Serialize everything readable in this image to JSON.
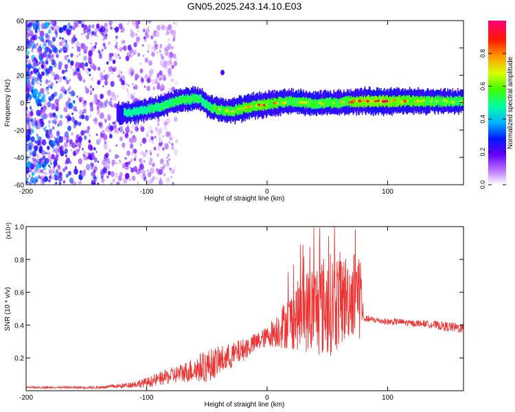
{
  "title": "GN05.2025.243.14.10.E03",
  "colors": {
    "snr_line": "#ee3333",
    "axis": "#000000",
    "background": "#ffffff"
  },
  "chart_data": [
    {
      "type": "heatmap",
      "name": "spectrogram",
      "xlabel": "Height of straight line (km)",
      "ylabel": "Frequency (Hz)",
      "xlim": [
        -200,
        163
      ],
      "ylim": [
        -60,
        60
      ],
      "xticks": [
        -200,
        -100,
        0,
        100
      ],
      "yticks": [
        -60,
        -40,
        -20,
        0,
        20,
        40,
        60
      ],
      "colorbar": {
        "label": "Normalized spectral amplitude",
        "range": [
          0.0,
          1.0
        ],
        "ticks": [
          0.0,
          0.2,
          0.4,
          0.6,
          0.8
        ],
        "colormap": [
          "#ffffff",
          "#7b00ff",
          "#0000ff",
          "#00c8ff",
          "#00ff80",
          "#80ff00",
          "#ffff00",
          "#ff8000",
          "#ff0000",
          "#ff00a0"
        ]
      },
      "noise_region_km": [
        -200,
        -85
      ],
      "signal_band": {
        "height_km": [
          -125,
          -110,
          -100,
          -90,
          -80,
          -70,
          -60,
          -55,
          -50,
          -45,
          -40,
          -35,
          -30,
          -25,
          -20,
          -15,
          -10,
          -5,
          0,
          10,
          20,
          30,
          40,
          50,
          60,
          70,
          80,
          90,
          100,
          110,
          120,
          130,
          140,
          150,
          163
        ],
        "center_freq_hz": [
          -8,
          -7,
          -5,
          -3,
          0,
          2,
          3,
          2,
          -2,
          -4,
          -5,
          -6,
          -6,
          -5,
          -4,
          -3,
          -2,
          -2,
          -1,
          0,
          1,
          0,
          -1,
          0,
          0,
          1,
          1,
          1,
          1,
          1,
          1,
          1,
          1,
          1,
          1
        ],
        "amplitude": [
          0.3,
          0.35,
          0.45,
          0.55,
          0.55,
          0.6,
          0.6,
          0.5,
          0.5,
          0.6,
          0.7,
          0.7,
          0.75,
          0.8,
          0.8,
          0.85,
          0.85,
          0.9,
          0.9,
          0.75,
          0.7,
          0.75,
          0.7,
          0.7,
          0.7,
          0.85,
          1.0,
          1.0,
          1.0,
          0.9,
          0.85,
          0.8,
          0.75,
          0.7,
          0.65
        ]
      },
      "blob": {
        "height_km": -37,
        "freq_hz": 22
      }
    },
    {
      "type": "line",
      "name": "snr",
      "xlabel": "Height of straight line (km)",
      "ylabel": "SNR (10 * v/v)",
      "multiplier": "(x10⁴)",
      "xlim": [
        -200,
        163
      ],
      "ylim": [
        0,
        1.0
      ],
      "xticks": [
        -200,
        -100,
        0,
        100
      ],
      "yticks": [
        0.2,
        0.4,
        0.6,
        0.8,
        1.0
      ],
      "ytick_labels": [
        "0.2",
        "0.4",
        "0.6",
        "0.8",
        "1.0"
      ],
      "series": [
        {
          "name": "SNR",
          "x": [
            -200,
            -180,
            -160,
            -140,
            -120,
            -110,
            -100,
            -90,
            -80,
            -70,
            -60,
            -50,
            -40,
            -30,
            -20,
            -10,
            0,
            10,
            20,
            30,
            40,
            50,
            60,
            70,
            75,
            78,
            80,
            90,
            100,
            110,
            120,
            130,
            140,
            150,
            163
          ],
          "y": [
            0.02,
            0.02,
            0.02,
            0.02,
            0.03,
            0.04,
            0.05,
            0.07,
            0.09,
            0.11,
            0.13,
            0.15,
            0.18,
            0.21,
            0.25,
            0.29,
            0.33,
            0.38,
            0.43,
            0.48,
            0.5,
            0.52,
            0.55,
            0.58,
            0.6,
            0.6,
            0.44,
            0.43,
            0.42,
            0.42,
            0.41,
            0.41,
            0.4,
            0.39,
            0.38
          ],
          "spread": [
            0.005,
            0.005,
            0.006,
            0.008,
            0.015,
            0.02,
            0.03,
            0.04,
            0.05,
            0.06,
            0.08,
            0.1,
            0.09,
            0.08,
            0.07,
            0.06,
            0.06,
            0.12,
            0.18,
            0.24,
            0.3,
            0.32,
            0.3,
            0.25,
            0.3,
            0.3,
            0.02,
            0.02,
            0.02,
            0.02,
            0.02,
            0.02,
            0.025,
            0.03,
            0.03
          ]
        }
      ]
    }
  ]
}
